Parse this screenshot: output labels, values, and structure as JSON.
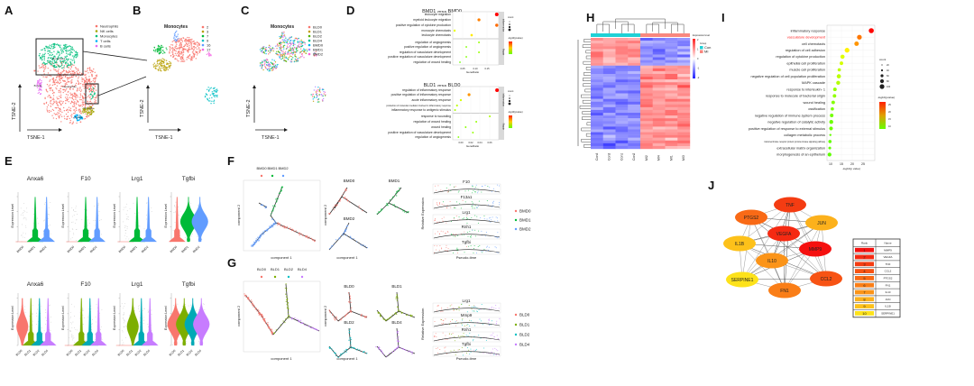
{
  "panel_labels": [
    "A",
    "B",
    "C",
    "D",
    "E",
    "F",
    "G",
    "H",
    "I",
    "J"
  ],
  "A": {
    "legend": [
      {
        "label": "Neutrophils",
        "color": "#f8766d"
      },
      {
        "label": "NK cells",
        "color": "#a3a500"
      },
      {
        "label": "Monocytes",
        "color": "#00bf7d"
      },
      {
        "label": "T cells",
        "color": "#00b0f6"
      },
      {
        "label": "B cells",
        "color": "#e76bf3"
      }
    ],
    "cluster_labels": [
      "Monocytes",
      "Neutrophils",
      "B cells",
      "NK cells",
      "T cells"
    ],
    "xlabel": "TSNE-1",
    "ylabel": "TSNE-2"
  },
  "B": {
    "title": "Monocytes",
    "legend": [
      {
        "label": "2",
        "color": "#f8766d"
      },
      {
        "label": "3",
        "color": "#b79f00"
      },
      {
        "label": "7",
        "color": "#00ba38"
      },
      {
        "label": "9",
        "color": "#00bfc4"
      },
      {
        "label": "16",
        "color": "#619cff"
      },
      {
        "label": "17",
        "color": "#f564e3"
      }
    ],
    "xlabel": "TSNE-1",
    "ylabel": "TSNE-2"
  },
  "C": {
    "title": "Monocytes",
    "legend": [
      {
        "label": "BLD0",
        "color": "#f8766d"
      },
      {
        "label": "BLD1",
        "color": "#c49a00"
      },
      {
        "label": "BLD2",
        "color": "#53b400"
      },
      {
        "label": "BLD4",
        "color": "#00c094"
      },
      {
        "label": "BMD0",
        "color": "#00b6eb"
      },
      {
        "label": "BMD1",
        "color": "#a58aff"
      },
      {
        "label": "BMD2",
        "color": "#fb61d7"
      }
    ],
    "xlabel": "TSNE-1",
    "ylabel": "TSNE-2"
  },
  "D": {
    "legend_count": "count",
    "legend_color": "-log10(pvalue)",
    "plots": [
      {
        "title_a": "BMD1",
        "versus": "versus",
        "title_b": "BMD0",
        "xlabel": "GeneRatio",
        "xticks": [
          "0.05",
          "0.10",
          "0.15"
        ],
        "groups": [
          {
            "name": "Inflammation",
            "terms": [
              {
                "term": "leukocyte migration",
                "ratio": 0.19,
                "level": 1.0
              },
              {
                "term": "myeloid leukocyte migration",
                "ratio": 0.117,
                "level": 0.7
              },
              {
                "term": "positive regulation of cytokine production",
                "ratio": 0.19,
                "level": 0.75
              },
              {
                "term": "monocyte chemotaxis",
                "ratio": 0.017,
                "level": 0.35
              },
              {
                "term": "leukocyte chemotaxis",
                "ratio": 0.087,
                "level": 0.45
              }
            ]
          },
          {
            "name": "Repair",
            "terms": [
              {
                "term": "regulation of angiogenesis",
                "ratio": 0.117,
                "level": 0.15
              },
              {
                "term": "positive regulation of angiogenesis",
                "ratio": 0.065,
                "level": 0.1
              },
              {
                "term": "regulation of vasculature development",
                "ratio": 0.117,
                "level": 0.15
              },
              {
                "term": "positive regulation of vasculature development",
                "ratio": 0.065,
                "level": 0.1
              },
              {
                "term": "regulation of wound healing",
                "ratio": 0.039,
                "level": 0.05
              }
            ]
          }
        ]
      },
      {
        "title_a": "BLD1",
        "versus": "versus",
        "title_b": "BLD0",
        "xlabel": "GeneRatio",
        "xticks": [
          "0.00",
          "0.02",
          "0.04",
          "0.06"
        ],
        "groups": [
          {
            "name": "Inflammation",
            "terms": [
              {
                "term": "regulation of inflammatory response",
                "ratio": 0.075,
                "level": 1.0
              },
              {
                "term": "positive regulation of inflammatory response",
                "ratio": 0.017,
                "level": 0.65
              },
              {
                "term": "acute inflammatory response",
                "ratio": 0.0,
                "level": 0.3
              },
              {
                "term": "production of molecular mediator involved in inflammatory response",
                "ratio": -0.008,
                "level": 0.25
              },
              {
                "term": "inflammatory response to antigenic stimulus",
                "ratio": -0.012,
                "level": 0.2
              }
            ]
          },
          {
            "name": "Repair",
            "terms": [
              {
                "term": "response to wounding",
                "ratio": 0.06,
                "level": 0.2
              },
              {
                "term": "regulation of wound healing",
                "ratio": 0.032,
                "level": 0.15
              },
              {
                "term": "wound healing",
                "ratio": 0.01,
                "level": 0.12
              },
              {
                "term": "positive regulation of vasculature development",
                "ratio": 0.025,
                "level": 0.15
              },
              {
                "term": "regulation of angiogenesis",
                "ratio": -0.005,
                "level": 0.1
              }
            ]
          }
        ]
      }
    ]
  },
  "E": {
    "genes": [
      "Anxa6",
      "F10",
      "Lrg1",
      "Tgfbi"
    ],
    "ylabel": "Expression Level",
    "row1_groups": [
      {
        "label": "BMD0",
        "color": "#f8766d"
      },
      {
        "label": "BMD1",
        "color": "#00ba38"
      },
      {
        "label": "BMD2",
        "color": "#619cff"
      }
    ],
    "row2_groups": [
      {
        "label": "BLD0",
        "color": "#f8766d"
      },
      {
        "label": "BLD1",
        "color": "#7cae00"
      },
      {
        "label": "BLD2",
        "color": "#00a9b5"
      },
      {
        "label": "BLD4",
        "color": "#c77cff"
      }
    ]
  },
  "F": {
    "legend": [
      {
        "label": "BMD0",
        "color": "#f8766d"
      },
      {
        "label": "BMD1",
        "color": "#00ba38"
      },
      {
        "label": "BMD2",
        "color": "#619cff"
      }
    ],
    "xlabel": "component 1",
    "ylabel": "component 2",
    "genes": [
      "F10",
      "F13a1",
      "Lrg1",
      "Rnh1",
      "Tgfbi"
    ],
    "expr_ylabel": "Relative Expression",
    "expr_xlabel": "Pseudo-time"
  },
  "G": {
    "legend": [
      {
        "label": "BLD0",
        "color": "#f8766d"
      },
      {
        "label": "BLD1",
        "color": "#7cae00"
      },
      {
        "label": "BLD2",
        "color": "#00bfc4"
      },
      {
        "label": "BLD4",
        "color": "#c77cff"
      }
    ],
    "xlabel": "component 1",
    "ylabel": "component 2",
    "genes": [
      "Lrg1",
      "Mmp9",
      "Rnh1",
      "Tgfbi"
    ],
    "expr_ylabel": "Relative Expression",
    "expr_xlabel": "Pseudo-time"
  },
  "H": {
    "columns": [
      "Con4",
      "Con3",
      "Con1",
      "Con2",
      "MI2",
      "MI4",
      "MI1",
      "MI3"
    ],
    "legend_title": "Expression level",
    "scale_ticks": [
      "2",
      "1",
      "0",
      "-1",
      "-2"
    ],
    "group_title": "Group",
    "groups": [
      {
        "label": "Con",
        "color": "#1fd1d6"
      },
      {
        "label": "MI",
        "color": "#f8877f"
      }
    ],
    "high_color": "#ff2020",
    "low_color": "#2020ff"
  },
  "I": {
    "xlabel": "-log10(p value)",
    "xticks": [
      "10",
      "15",
      "20",
      "25"
    ],
    "legend_count": "count",
    "count_ticks": [
      "20",
      "40",
      "60",
      "80",
      "100"
    ],
    "legend_color": "-log10(pvalue)",
    "color_ticks": [
      "25",
      "20",
      "15",
      "10"
    ],
    "terms": [
      {
        "term": "inflammatory response",
        "value": 28.8,
        "count": 60,
        "highlight": false
      },
      {
        "term": "vasculature development",
        "value": 23.3,
        "count": 55,
        "highlight": true
      },
      {
        "term": "cell chemotaxis",
        "value": 22.0,
        "count": 50,
        "highlight": false
      },
      {
        "term": "regulation of cell adhesion",
        "value": 17.6,
        "count": 55,
        "highlight": false
      },
      {
        "term": "regulation of cytokine production",
        "value": 15.5,
        "count": 45,
        "highlight": false
      },
      {
        "term": "epithelial cell proliferation",
        "value": 15.0,
        "count": 35,
        "highlight": false
      },
      {
        "term": "muscle cell proliferation",
        "value": 14.0,
        "count": 30,
        "highlight": false
      },
      {
        "term": "negative regulation of cell population proliferation",
        "value": 13.8,
        "count": 45,
        "highlight": false
      },
      {
        "term": "MAPK cascade",
        "value": 13.5,
        "count": 42,
        "highlight": false
      },
      {
        "term": "response to interleukin- 1",
        "value": 12.0,
        "count": 35,
        "highlight": false
      },
      {
        "term": "response to molecule of bacterial origin",
        "value": 11.8,
        "count": 35,
        "highlight": false
      },
      {
        "term": "wound healing",
        "value": 11.2,
        "count": 35,
        "highlight": false
      },
      {
        "term": "ossification",
        "value": 10.8,
        "count": 30,
        "highlight": false
      },
      {
        "term": "negative regulation of immune system process",
        "value": 10.5,
        "count": 35,
        "highlight": false
      },
      {
        "term": "negative regulation of catalytic activity",
        "value": 10.3,
        "count": 42,
        "highlight": false
      },
      {
        "term": "positive regulation of response to external stimulus",
        "value": 10.2,
        "count": 38,
        "highlight": false
      },
      {
        "term": "collagen metabolic process",
        "value": 9.9,
        "count": 12,
        "highlight": false
      },
      {
        "term": "transmembrane receptor protein tyrosine kinase signaling pathway",
        "value": 9.7,
        "count": 30,
        "highlight": false
      },
      {
        "term": "extracellular matrix organization",
        "value": 9.6,
        "count": 22,
        "highlight": false
      },
      {
        "term": "morphogenesis of an epithelium",
        "value": 9.5,
        "count": 40,
        "highlight": false
      }
    ],
    "highlight_color": "#ff2020"
  },
  "J": {
    "nodes": [
      {
        "name": "TNF",
        "color": "#f43c12"
      },
      {
        "name": "PTGS2",
        "color": "#f96a16"
      },
      {
        "name": "JUN",
        "color": "#fcb11c"
      },
      {
        "name": "VEGFA",
        "color": "#f52a12"
      },
      {
        "name": "IL1B",
        "color": "#fdc11a"
      },
      {
        "name": "MMP9",
        "color": "#f5100f"
      },
      {
        "name": "IL10",
        "color": "#fb9419"
      },
      {
        "name": "SERPINE1",
        "color": "#fde21a"
      },
      {
        "name": "CCL2",
        "color": "#f75314"
      },
      {
        "name": "FN1",
        "color": "#fa7e17"
      }
    ],
    "table_headers": [
      "Rank",
      "Name"
    ],
    "table": [
      {
        "rank": "1",
        "name": "MMP9",
        "color": "#f5100f"
      },
      {
        "rank": "2",
        "name": "VEGFA",
        "color": "#f52a12"
      },
      {
        "rank": "3",
        "name": "TNF",
        "color": "#f43c12"
      },
      {
        "rank": "4",
        "name": "CCL2",
        "color": "#f75314"
      },
      {
        "rank": "5",
        "name": "PTGS2",
        "color": "#f96a16"
      },
      {
        "rank": "6",
        "name": "FN1",
        "color": "#fa7e17"
      },
      {
        "rank": "7",
        "name": "IL10",
        "color": "#fb9419"
      },
      {
        "rank": "8",
        "name": "JUN",
        "color": "#fcb11c"
      },
      {
        "rank": "9",
        "name": "IL1B",
        "color": "#fdc11a"
      },
      {
        "rank": "10",
        "name": "SERPINE1",
        "color": "#fde21a"
      }
    ]
  }
}
